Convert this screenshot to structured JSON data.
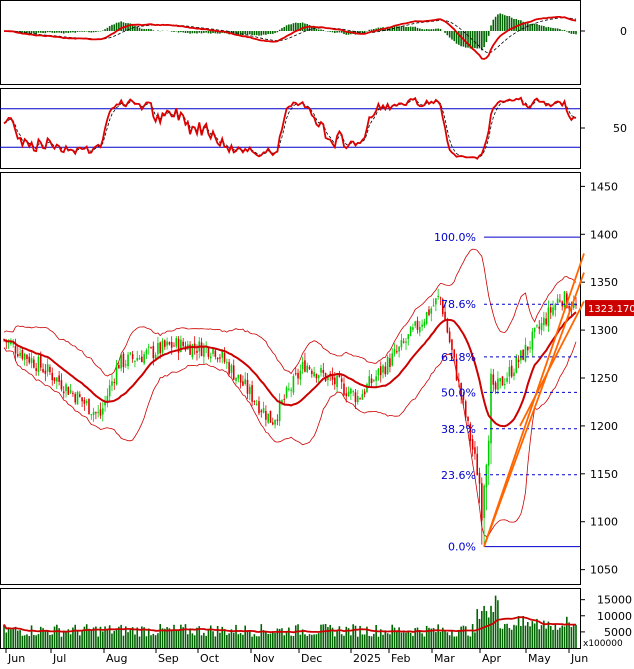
{
  "chart_data": [
    {
      "type": "line",
      "panel": "macd",
      "yticks": [
        0
      ],
      "series": [
        {
          "role": "histogram",
          "color": "#006400"
        },
        {
          "role": "macd-line",
          "color": "#dd0000"
        },
        {
          "role": "signal-line",
          "color": "#000000"
        }
      ]
    },
    {
      "type": "line",
      "panel": "oscillator",
      "yticks": [
        50
      ],
      "levels": [
        80,
        20
      ],
      "series": [
        {
          "role": "oscillator-line",
          "color": "#dd0000"
        },
        {
          "role": "signal-line",
          "color": "#000000"
        }
      ]
    },
    {
      "type": "candlestick",
      "panel": "price",
      "x_labels": [
        "Jun",
        "Jul",
        "Aug",
        "Sep",
        "Oct",
        "Nov",
        "Dec",
        "2025",
        "Feb",
        "Mar",
        "Apr",
        "May",
        "Jun"
      ],
      "yticks": [
        1050,
        1100,
        1150,
        1200,
        1250,
        1300,
        1350,
        1400,
        1450
      ],
      "ylim": [
        1035,
        1465
      ],
      "last_price_label": "1323.170",
      "fibonacci": [
        {
          "label": "100.0%",
          "value": 1397
        },
        {
          "label": "78.6%",
          "value": 1327
        },
        {
          "label": "61.8%",
          "value": 1272
        },
        {
          "label": "50.0%",
          "value": 1235
        },
        {
          "label": "38.2%",
          "value": 1197
        },
        {
          "label": "23.6%",
          "value": 1149
        },
        {
          "label": "0.0%",
          "value": 1074
        }
      ],
      "key_points": [
        {
          "month": "Jun 2024",
          "close": 1290
        },
        {
          "month": "Jul",
          "close": 1255
        },
        {
          "month": "Aug",
          "close": 1210
        },
        {
          "month": "Aug",
          "close": 1265
        },
        {
          "month": "Sep",
          "close": 1285
        },
        {
          "month": "Oct",
          "close": 1280
        },
        {
          "month": "Nov",
          "close": 1205
        },
        {
          "month": "Dec",
          "close": 1265
        },
        {
          "month": "2025",
          "close": 1230
        },
        {
          "month": "Feb",
          "close": 1280
        },
        {
          "month": "Mar",
          "close": 1335
        },
        {
          "month": "Apr",
          "close": 1130
        },
        {
          "month": "Apr",
          "close": 1230
        },
        {
          "month": "May",
          "close": 1270
        },
        {
          "month": "May",
          "close": 1335
        },
        {
          "month": "Jun",
          "close": 1323
        }
      ],
      "colors": {
        "up": "#00cc00",
        "down": "#dd0000",
        "ma": "#cc0000",
        "bollinger": "#cc0000",
        "fib": "#0000cc",
        "trend": "#ff6600",
        "last_price_bg": "#cc0000"
      }
    },
    {
      "type": "bar",
      "panel": "volume",
      "yticks": [
        5000,
        10000,
        15000
      ],
      "unit_label": "x100000",
      "colors": {
        "bar": "#006400",
        "ma": "#cc0000"
      }
    }
  ]
}
